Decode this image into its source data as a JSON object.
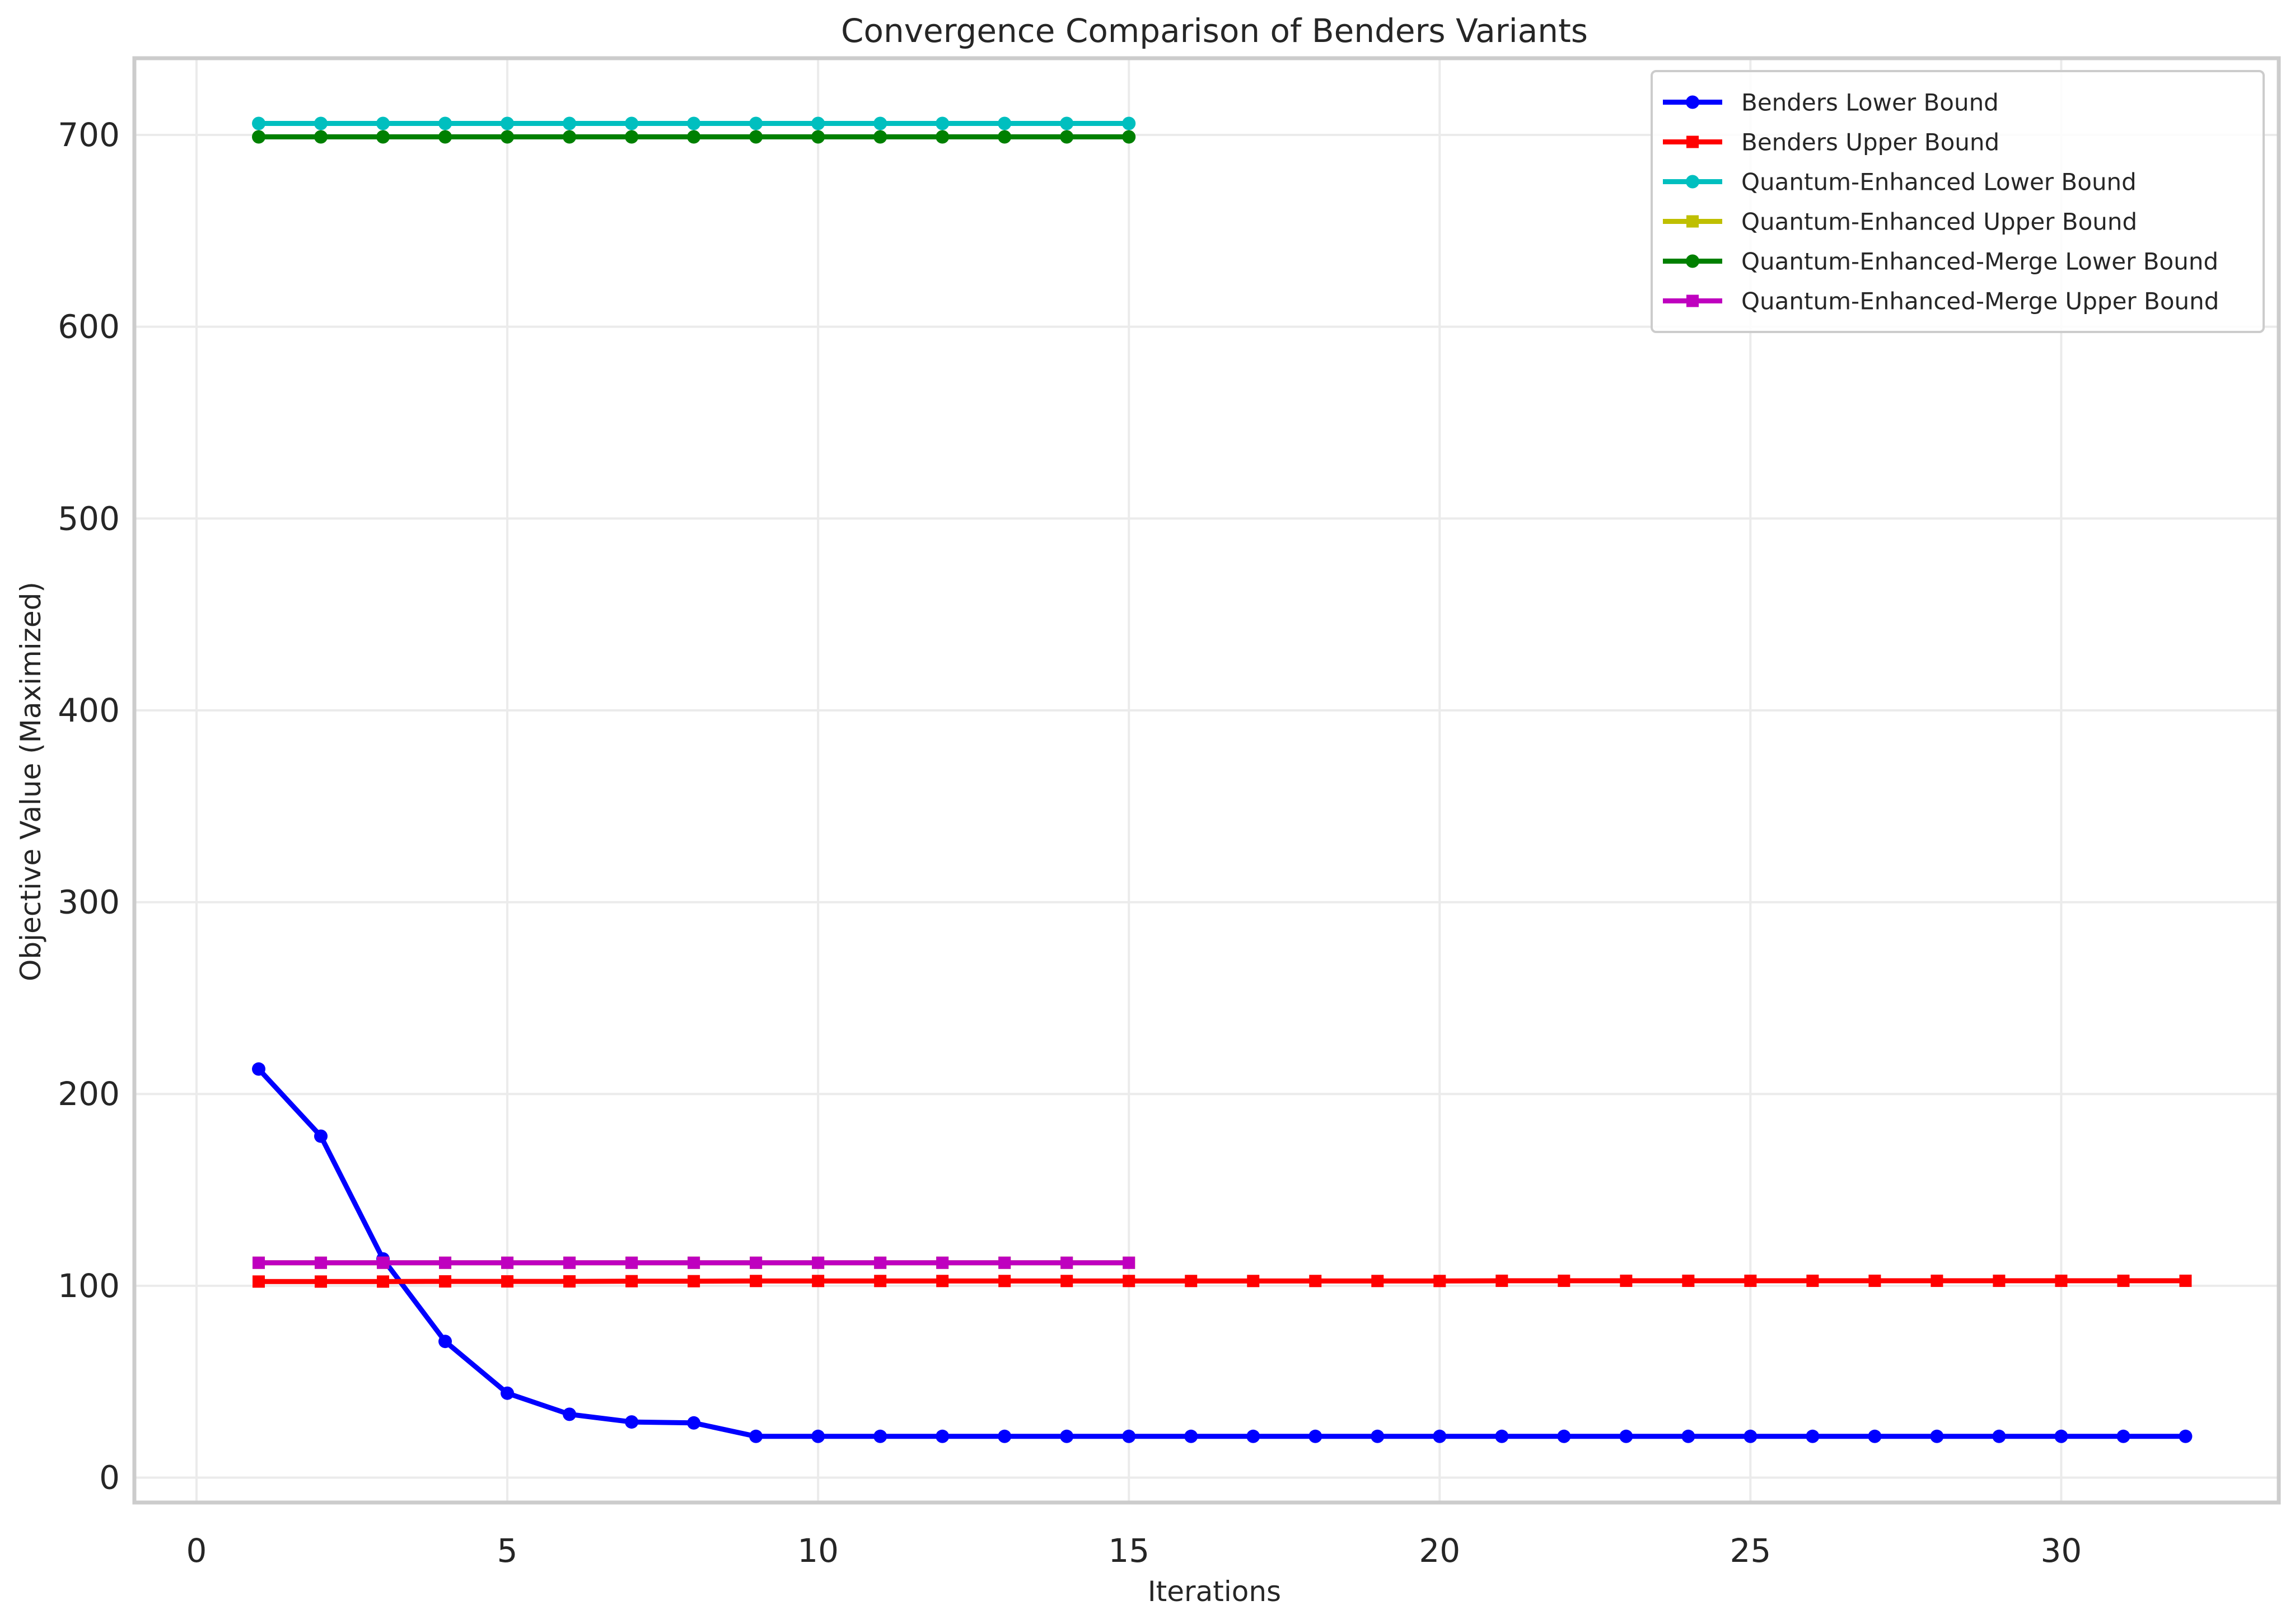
{
  "chart_data": {
    "type": "line",
    "title": "Convergence Comparison of Benders Variants",
    "xlabel": "Iterations",
    "ylabel": "Objective Value (Maximized)",
    "xlim": [
      -1.0,
      33.5
    ],
    "ylim": [
      -13,
      740
    ],
    "xticks": [
      0,
      5,
      10,
      15,
      20,
      25,
      30
    ],
    "yticks": [
      0,
      100,
      200,
      300,
      400,
      500,
      600,
      700
    ],
    "grid": true,
    "legend_position": "top-right",
    "series": [
      {
        "name": "Benders Lower Bound",
        "color": "#0000ff",
        "marker": "circle",
        "x": [
          1,
          2,
          3,
          4,
          5,
          6,
          7,
          8,
          9,
          10,
          11,
          12,
          13,
          14,
          15,
          16,
          17,
          18,
          19,
          20,
          21,
          22,
          23,
          24,
          25,
          26,
          27,
          28,
          29,
          30,
          31,
          32
        ],
        "y": [
          213,
          178,
          114,
          71,
          44,
          33,
          29,
          28.5,
          21.5,
          21.5,
          21.5,
          21.5,
          21.5,
          21.5,
          21.5,
          21.5,
          21.5,
          21.5,
          21.5,
          21.5,
          21.5,
          21.5,
          21.5,
          21.5,
          21.5,
          21.5,
          21.5,
          21.5,
          21.5,
          21.5,
          21.5,
          21.5
        ]
      },
      {
        "name": "Benders Upper Bound",
        "color": "#ff0000",
        "marker": "square",
        "x": [
          1,
          2,
          3,
          4,
          5,
          6,
          7,
          8,
          9,
          10,
          11,
          12,
          13,
          14,
          15,
          16,
          17,
          18,
          19,
          20,
          21,
          22,
          23,
          24,
          25,
          26,
          27,
          28,
          29,
          30,
          31,
          32
        ],
        "y": [
          102.2,
          102.2,
          102.2,
          102.3,
          102.3,
          102.3,
          102.4,
          102.4,
          102.5,
          102.5,
          102.5,
          102.5,
          102.5,
          102.5,
          102.5,
          102.5,
          102.5,
          102.5,
          102.5,
          102.5,
          102.6,
          102.6,
          102.6,
          102.6,
          102.6,
          102.6,
          102.6,
          102.6,
          102.6,
          102.6,
          102.6,
          102.6
        ]
      },
      {
        "name": "Quantum-Enhanced Lower Bound",
        "color": "#00bfbf",
        "marker": "circle",
        "x": [
          1,
          2,
          3,
          4,
          5,
          6,
          7,
          8,
          9,
          10,
          11,
          12,
          13,
          14,
          15
        ],
        "y": [
          706,
          706,
          706,
          706,
          706,
          706,
          706,
          706,
          706,
          706,
          706,
          706,
          706,
          706,
          706
        ]
      },
      {
        "name": "Quantum-Enhanced Upper Bound",
        "color": "#bfbf00",
        "marker": "square",
        "x": [
          1,
          2,
          3,
          4,
          5,
          6,
          7,
          8,
          9,
          10,
          11,
          12,
          13,
          14,
          15
        ],
        "y": [
          112,
          112,
          112,
          112,
          112,
          112,
          112,
          112,
          112,
          112,
          112,
          112,
          112,
          112,
          112
        ]
      },
      {
        "name": "Quantum-Enhanced-Merge Lower Bound",
        "color": "#008000",
        "marker": "circle",
        "x": [
          1,
          2,
          3,
          4,
          5,
          6,
          7,
          8,
          9,
          10,
          11,
          12,
          13,
          14,
          15
        ],
        "y": [
          699,
          699,
          699,
          699,
          699,
          699,
          699,
          699,
          699,
          699,
          699,
          699,
          699,
          699,
          699
        ]
      },
      {
        "name": "Quantum-Enhanced-Merge Upper Bound",
        "color": "#bf00bf",
        "marker": "square",
        "x": [
          1,
          2,
          3,
          4,
          5,
          6,
          7,
          8,
          9,
          10,
          11,
          12,
          13,
          14,
          15
        ],
        "y": [
          112,
          112,
          112,
          112,
          112,
          112,
          112,
          112,
          112,
          112,
          112,
          112,
          112,
          112,
          112
        ]
      }
    ]
  }
}
